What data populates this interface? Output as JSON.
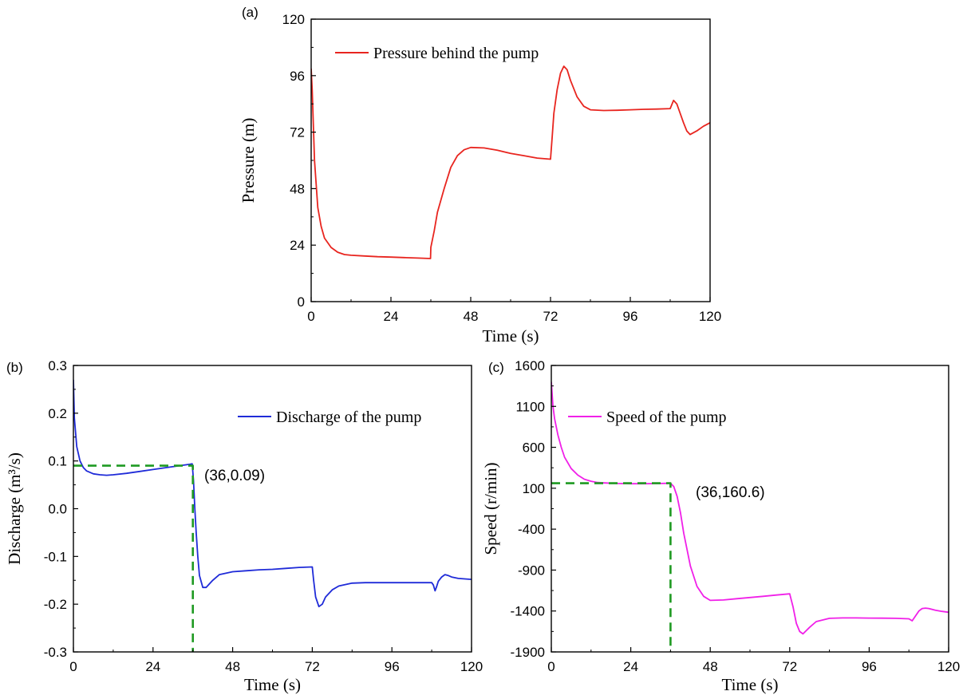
{
  "chart_data": [
    {
      "panel_label": "(a)",
      "type": "line",
      "xlabel": "Time (s)",
      "ylabel": "Pressure (m)",
      "xlim": [
        0,
        120
      ],
      "ylim": [
        0,
        120
      ],
      "xticks": [
        0,
        24,
        48,
        72,
        96,
        120
      ],
      "yticks": [
        0,
        24,
        48,
        72,
        96,
        120
      ],
      "xtick_labels": [
        "0",
        "24",
        "48",
        "72",
        "96",
        "120"
      ],
      "ytick_labels": [
        "0",
        "24",
        "48",
        "72",
        "96",
        "120"
      ],
      "legend_position": "top-left",
      "series": [
        {
          "name": "Pressure behind the pump",
          "color": "#e8251f",
          "x": [
            0,
            0.3,
            1,
            2,
            3,
            4,
            6,
            8,
            10,
            12,
            16,
            20,
            24,
            28,
            32,
            35.9,
            36,
            37,
            38,
            40,
            42,
            44,
            46,
            48,
            52,
            56,
            60,
            64,
            68,
            72,
            72.5,
            73,
            74,
            75,
            76,
            77,
            78,
            80,
            82,
            84,
            88,
            92,
            96,
            100,
            104,
            108,
            109,
            110,
            111,
            112,
            113,
            114,
            116,
            118,
            120
          ],
          "y": [
            99,
            90,
            60,
            40,
            32,
            27,
            23,
            21,
            20,
            19.7,
            19.4,
            19.1,
            18.9,
            18.7,
            18.5,
            18.3,
            23,
            30,
            38,
            48,
            57,
            62,
            64.5,
            65.5,
            65.3,
            64.3,
            63,
            62,
            61,
            60.5,
            70,
            80,
            90,
            97,
            100,
            98.5,
            94,
            87,
            83,
            81.5,
            81.2,
            81.3,
            81.5,
            81.7,
            81.8,
            82,
            85.5,
            84,
            80,
            76,
            72.5,
            71,
            72.5,
            74.5,
            76
          ]
        }
      ]
    },
    {
      "panel_label": "(b)",
      "type": "line",
      "xlabel": "Time (s)",
      "ylabel": "Discharge (m³/s)",
      "xlim": [
        0,
        120
      ],
      "ylim": [
        -0.3,
        0.3
      ],
      "xticks": [
        0,
        24,
        48,
        72,
        96,
        120
      ],
      "yticks": [
        -0.3,
        -0.2,
        -0.1,
        0.0,
        0.1,
        0.2,
        0.3
      ],
      "xtick_labels": [
        "0",
        "24",
        "48",
        "72",
        "96",
        "120"
      ],
      "ytick_labels": [
        "-0.3",
        "-0.2",
        "-0.1",
        "0.0",
        "0.1",
        "0.2",
        "0.3"
      ],
      "legend_position": "top-right",
      "annotation": {
        "text": "(36,0.09)",
        "x": 36,
        "y": 0.09
      },
      "series": [
        {
          "name": "Discharge of the pump",
          "color": "#1f2bd8",
          "x": [
            0,
            0.3,
            1,
            2,
            3,
            4,
            6,
            8,
            10,
            12,
            16,
            20,
            24,
            28,
            32,
            35,
            35.8,
            36.2,
            36.6,
            37,
            37.5,
            38,
            39,
            40,
            42,
            44,
            48,
            52,
            56,
            60,
            64,
            68,
            72,
            72.4,
            73,
            74,
            75,
            76,
            78,
            80,
            84,
            88,
            92,
            96,
            100,
            104,
            108,
            108.5,
            109,
            109.5,
            110,
            111,
            112,
            113,
            114,
            116,
            118,
            120
          ],
          "y": [
            0.27,
            0.19,
            0.13,
            0.1,
            0.086,
            0.079,
            0.073,
            0.071,
            0.07,
            0.071,
            0.074,
            0.078,
            0.082,
            0.086,
            0.09,
            0.093,
            0.094,
            0.06,
            0.0,
            -0.05,
            -0.1,
            -0.14,
            -0.165,
            -0.165,
            -0.15,
            -0.138,
            -0.132,
            -0.13,
            -0.128,
            -0.127,
            -0.125,
            -0.123,
            -0.122,
            -0.15,
            -0.185,
            -0.205,
            -0.2,
            -0.185,
            -0.17,
            -0.162,
            -0.156,
            -0.155,
            -0.155,
            -0.155,
            -0.155,
            -0.155,
            -0.155,
            -0.16,
            -0.172,
            -0.163,
            -0.152,
            -0.143,
            -0.138,
            -0.14,
            -0.143,
            -0.146,
            -0.147,
            -0.148
          ]
        },
        {
          "name": "",
          "color": "#1f9a22",
          "dashed": true,
          "x": [
            0,
            36,
            36
          ],
          "y": [
            0.09,
            0.09,
            -0.3
          ]
        }
      ]
    },
    {
      "panel_label": "(c)",
      "type": "line",
      "xlabel": "Time (s)",
      "ylabel": "Speed (r/min)",
      "xlim": [
        0,
        120
      ],
      "ylim": [
        -1900,
        1600
      ],
      "xticks": [
        0,
        24,
        48,
        72,
        96,
        120
      ],
      "yticks": [
        -1900,
        -1400,
        -900,
        -400,
        100,
        600,
        1100,
        1600
      ],
      "xtick_labels": [
        "0",
        "24",
        "48",
        "72",
        "96",
        "120"
      ],
      "ytick_labels": [
        "-1900",
        "-1400",
        "-900",
        "-400",
        "100",
        "600",
        "1100",
        "1600"
      ],
      "legend_position": "top-right",
      "annotation": {
        "text": "(36,160.6)",
        "x": 36,
        "y": 160.6
      },
      "series": [
        {
          "name": "Speed of the pump",
          "color": "#f020e8",
          "x": [
            0,
            0.5,
            1,
            2,
            3,
            4,
            6,
            8,
            10,
            12,
            14,
            16,
            20,
            24,
            28,
            32,
            35,
            36,
            37,
            38,
            39,
            40,
            42,
            44,
            46,
            48,
            52,
            56,
            60,
            64,
            68,
            72,
            73,
            74,
            75,
            76,
            78,
            80,
            84,
            88,
            92,
            96,
            100,
            104,
            108,
            109,
            110,
            111,
            112,
            113,
            114,
            116,
            118,
            120
          ],
          "y": [
            1400,
            1100,
            950,
            750,
            600,
            480,
            340,
            260,
            210,
            185,
            170,
            165,
            158,
            155,
            155,
            157,
            160,
            160.6,
            120,
            0,
            -200,
            -450,
            -850,
            -1100,
            -1220,
            -1270,
            -1265,
            -1250,
            -1235,
            -1220,
            -1205,
            -1190,
            -1350,
            -1550,
            -1650,
            -1680,
            -1600,
            -1530,
            -1490,
            -1485,
            -1485,
            -1487,
            -1488,
            -1490,
            -1495,
            -1520,
            -1460,
            -1400,
            -1370,
            -1365,
            -1370,
            -1390,
            -1405,
            -1415
          ]
        },
        {
          "name": "",
          "color": "#1f9a22",
          "dashed": true,
          "x": [
            0,
            36,
            36
          ],
          "y": [
            160.6,
            160.6,
            -1900
          ]
        }
      ]
    }
  ]
}
